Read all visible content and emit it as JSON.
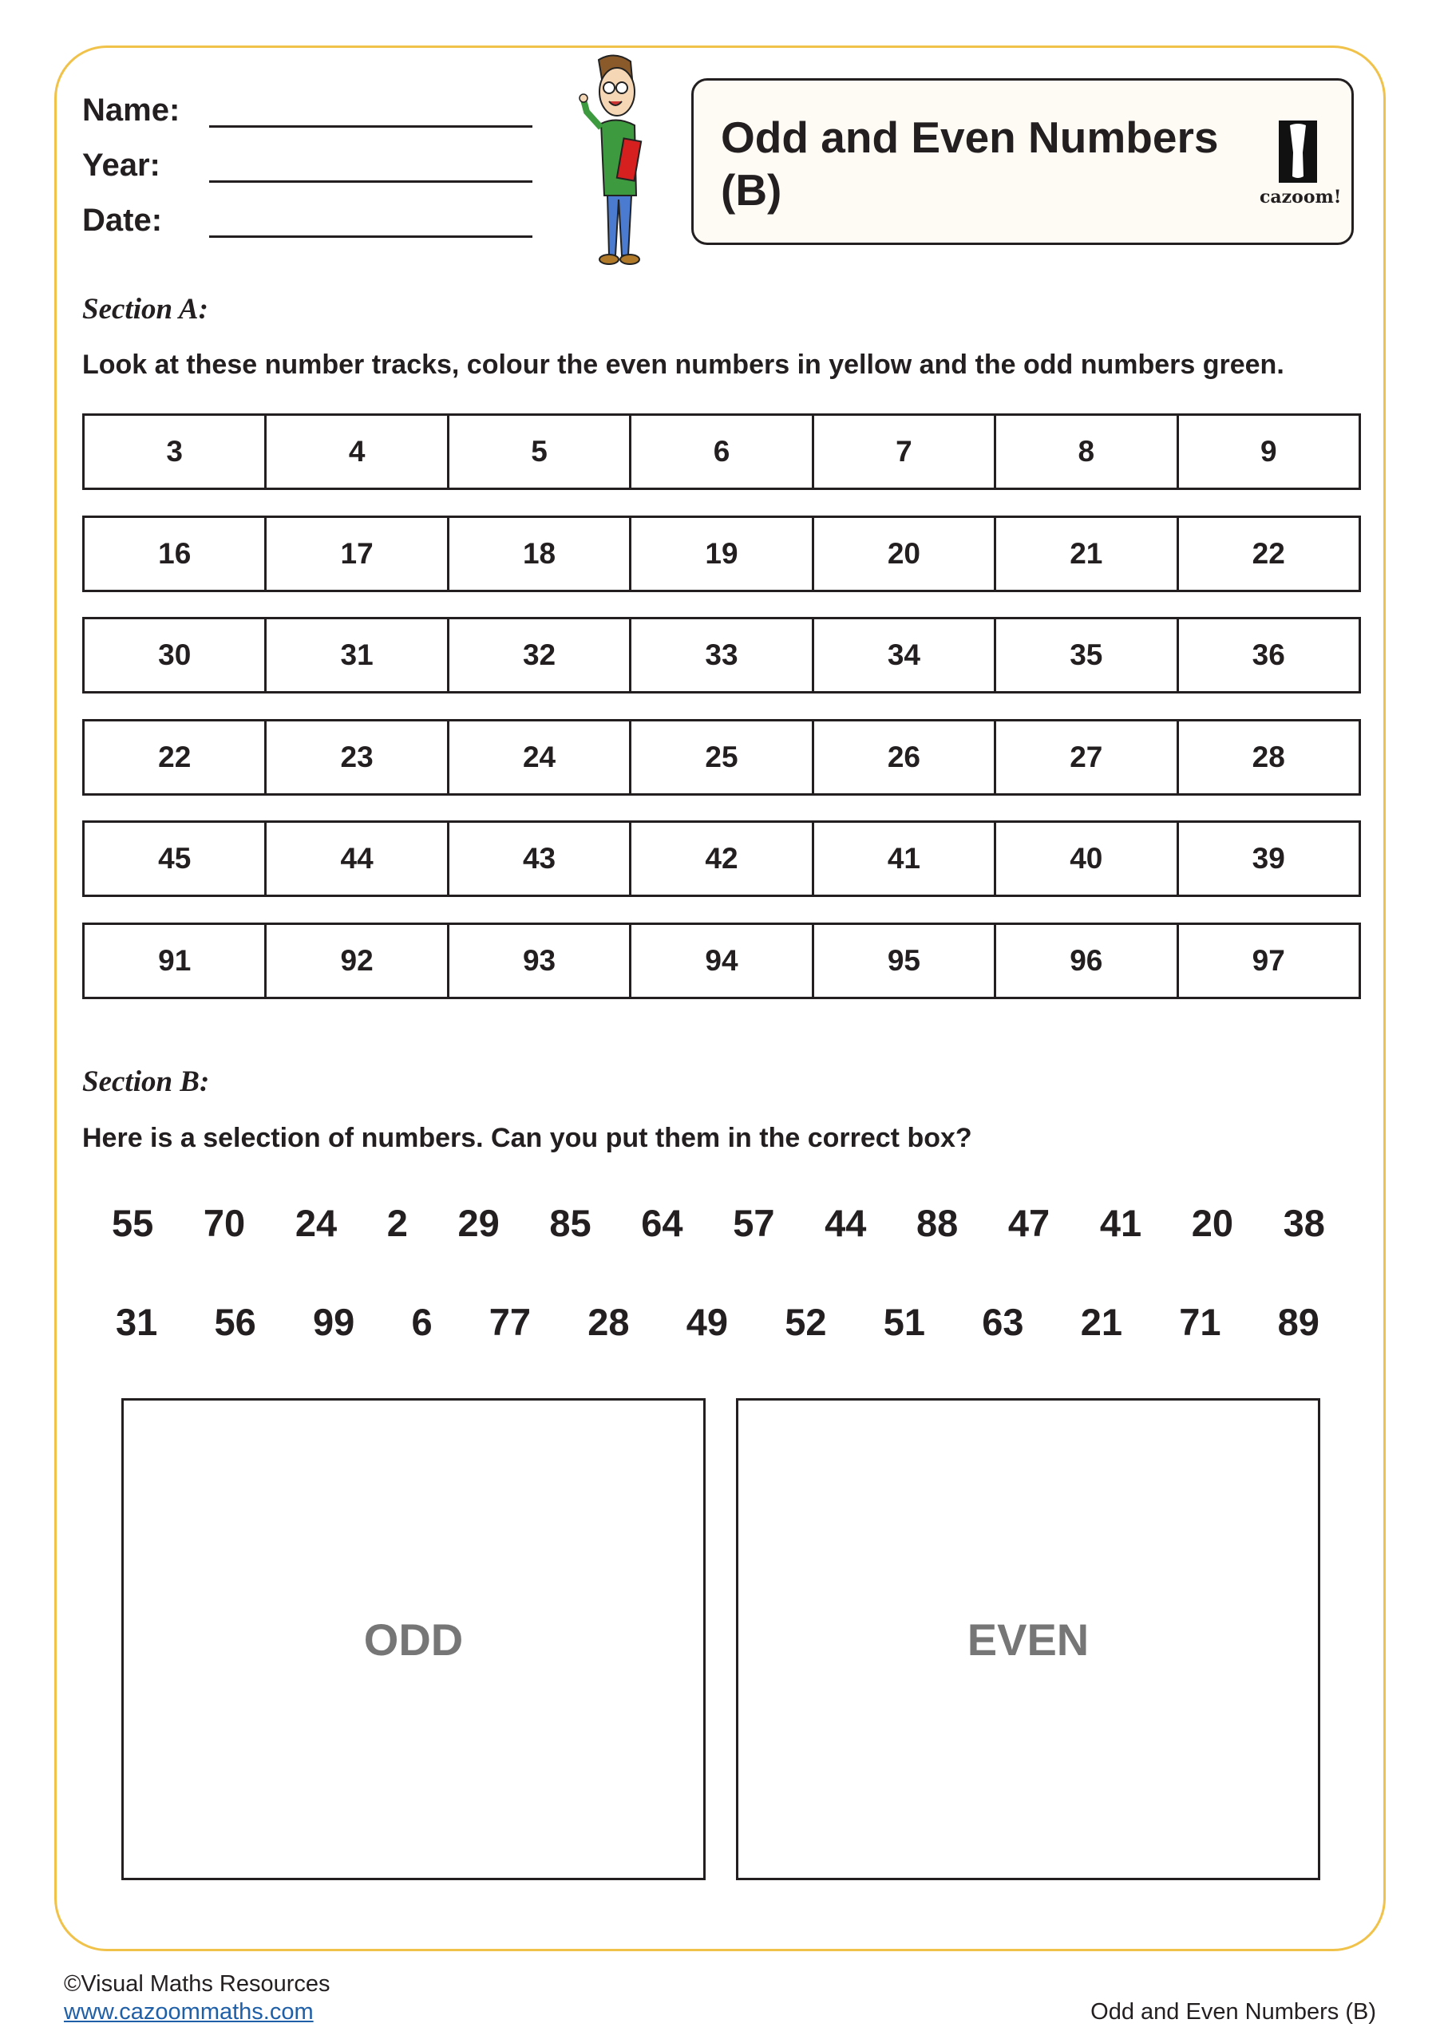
{
  "header": {
    "fields": [
      {
        "label": "Name:"
      },
      {
        "label": "Year:"
      },
      {
        "label": "Date:"
      }
    ],
    "title": "Odd and Even Numbers (B)",
    "logo_text": "cazoom!"
  },
  "section_a": {
    "heading": "Section A:",
    "instruction": "Look at these number tracks, colour the even numbers in yellow and the odd numbers green.",
    "tracks": [
      [
        "3",
        "4",
        "5",
        "6",
        "7",
        "8",
        "9"
      ],
      [
        "16",
        "17",
        "18",
        "19",
        "20",
        "21",
        "22"
      ],
      [
        "30",
        "31",
        "32",
        "33",
        "34",
        "35",
        "36"
      ],
      [
        "22",
        "23",
        "24",
        "25",
        "26",
        "27",
        "28"
      ],
      [
        "45",
        "44",
        "43",
        "42",
        "41",
        "40",
        "39"
      ],
      [
        "91",
        "92",
        "93",
        "94",
        "95",
        "96",
        "97"
      ]
    ]
  },
  "section_b": {
    "heading": "Section B:",
    "instruction": "Here is a selection of numbers. Can you put them in the correct box?",
    "numbers": [
      [
        "55",
        "70",
        "24",
        "2",
        "29",
        "85",
        "64",
        "57",
        "44",
        "88",
        "47",
        "41",
        "20",
        "38"
      ],
      [
        "31",
        "56",
        "99",
        "6",
        "77",
        "28",
        "49",
        "52",
        "51",
        "63",
        "21",
        "71",
        "89"
      ]
    ],
    "boxes": {
      "odd": "ODD",
      "even": "EVEN"
    }
  },
  "footer": {
    "copyright": "©Visual Maths Resources",
    "link": "www.cazoommaths.com",
    "page_title": "Odd and Even Numbers (B)"
  },
  "colors": {
    "frame": "#f0c24a",
    "title_bg": "#fdfbf3",
    "link": "#1f5fa8"
  }
}
